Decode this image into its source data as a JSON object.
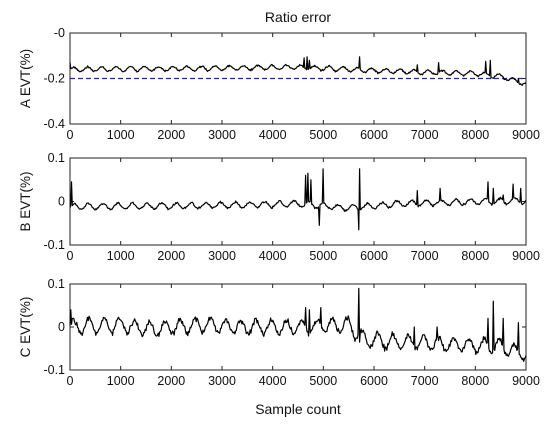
{
  "figure": {
    "title": "Ratio error",
    "xlabel": "Sample count"
  },
  "chart_data": [
    {
      "type": "line",
      "ylabel": "A EVT(%)",
      "xlim": [
        0,
        9000
      ],
      "ylim": [
        -0.4,
        0
      ],
      "x_ticks": [
        0,
        1000,
        2000,
        3000,
        4000,
        5000,
        6000,
        7000,
        8000,
        9000
      ],
      "y_ticks": [
        -0.4,
        -0.2,
        0
      ],
      "y_tick_labels": [
        "-0.4",
        "-0.2",
        "-0"
      ],
      "grid": false,
      "reference_line": {
        "y": -0.2,
        "style": "dashed",
        "color": "#1f1fd0"
      },
      "series": [
        {
          "color": "#000000",
          "baseline": [
            [
              0,
              -0.16
            ],
            [
              3000,
              -0.155
            ],
            [
              4500,
              -0.15
            ],
            [
              6000,
              -0.165
            ],
            [
              7000,
              -0.172
            ],
            [
              8000,
              -0.178
            ],
            [
              8500,
              -0.19
            ],
            [
              9000,
              -0.225
            ]
          ],
          "oscillation_amplitude": 0.012,
          "spikes": [
            [
              0,
              -0.13
            ],
            [
              4620,
              -0.11
            ],
            [
              4680,
              -0.105
            ],
            [
              4720,
              -0.12
            ],
            [
              5720,
              -0.105
            ],
            [
              6850,
              -0.14
            ],
            [
              7280,
              -0.13
            ],
            [
              8200,
              -0.125
            ],
            [
              8300,
              -0.12
            ],
            [
              8850,
              -0.2
            ]
          ]
        }
      ]
    },
    {
      "type": "line",
      "ylabel": "B EVT(%)",
      "xlim": [
        0,
        9000
      ],
      "ylim": [
        -0.1,
        0.1
      ],
      "x_ticks": [
        0,
        1000,
        2000,
        3000,
        4000,
        5000,
        6000,
        7000,
        8000,
        9000
      ],
      "y_ticks": [
        -0.1,
        0,
        0.1
      ],
      "y_tick_labels": [
        "-0.1",
        "0",
        "0.1"
      ],
      "grid": false,
      "series": [
        {
          "color": "#000000",
          "baseline": [
            [
              0,
              -0.012
            ],
            [
              2000,
              -0.01
            ],
            [
              3500,
              -0.008
            ],
            [
              4500,
              -0.005
            ],
            [
              5500,
              -0.015
            ],
            [
              6500,
              -0.005
            ],
            [
              7500,
              -0.002
            ],
            [
              9000,
              0.002
            ]
          ],
          "oscillation_amplitude": 0.008,
          "spikes": [
            [
              30,
              0.045
            ],
            [
              4650,
              0.06
            ],
            [
              4700,
              0.065
            ],
            [
              4750,
              0.05
            ],
            [
              4920,
              -0.055
            ],
            [
              5000,
              0.075
            ],
            [
              5700,
              -0.065
            ],
            [
              5720,
              0.075
            ],
            [
              6850,
              0.025
            ],
            [
              7300,
              0.03
            ],
            [
              8250,
              0.045
            ],
            [
              8350,
              0.03
            ],
            [
              8550,
              0.015
            ],
            [
              8750,
              0.04
            ],
            [
              8900,
              0.03
            ]
          ]
        }
      ]
    },
    {
      "type": "line",
      "ylabel": "C EVT(%)",
      "xlim": [
        0,
        9000
      ],
      "ylim": [
        -0.1,
        0.1
      ],
      "x_ticks": [
        0,
        1000,
        2000,
        3000,
        4000,
        5000,
        6000,
        7000,
        8000,
        9000
      ],
      "y_ticks": [
        -0.1,
        0,
        0.1
      ],
      "y_tick_labels": [
        "-0.1",
        "0",
        "0.1"
      ],
      "grid": false,
      "series": [
        {
          "color": "#000000",
          "baseline": [
            [
              0,
              0.0
            ],
            [
              1000,
              0.005
            ],
            [
              1600,
              -0.005
            ],
            [
              2600,
              0.005
            ],
            [
              3500,
              0.0
            ],
            [
              4600,
              0.0
            ],
            [
              5500,
              0.005
            ],
            [
              5800,
              -0.03
            ],
            [
              6500,
              -0.035
            ],
            [
              7500,
              -0.04
            ],
            [
              8500,
              -0.045
            ],
            [
              9000,
              -0.065
            ]
          ],
          "oscillation_amplitude": 0.02,
          "spikes": [
            [
              20,
              0.04
            ],
            [
              4650,
              0.045
            ],
            [
              4720,
              0.04
            ],
            [
              4950,
              0.045
            ],
            [
              5700,
              0.09
            ],
            [
              5720,
              -0.035
            ],
            [
              6800,
              0.0
            ],
            [
              7250,
              0.0
            ],
            [
              8250,
              0.02
            ],
            [
              8350,
              0.06
            ],
            [
              8550,
              0.02
            ],
            [
              8850,
              0.01
            ],
            [
              8950,
              -0.08
            ]
          ]
        }
      ]
    }
  ]
}
